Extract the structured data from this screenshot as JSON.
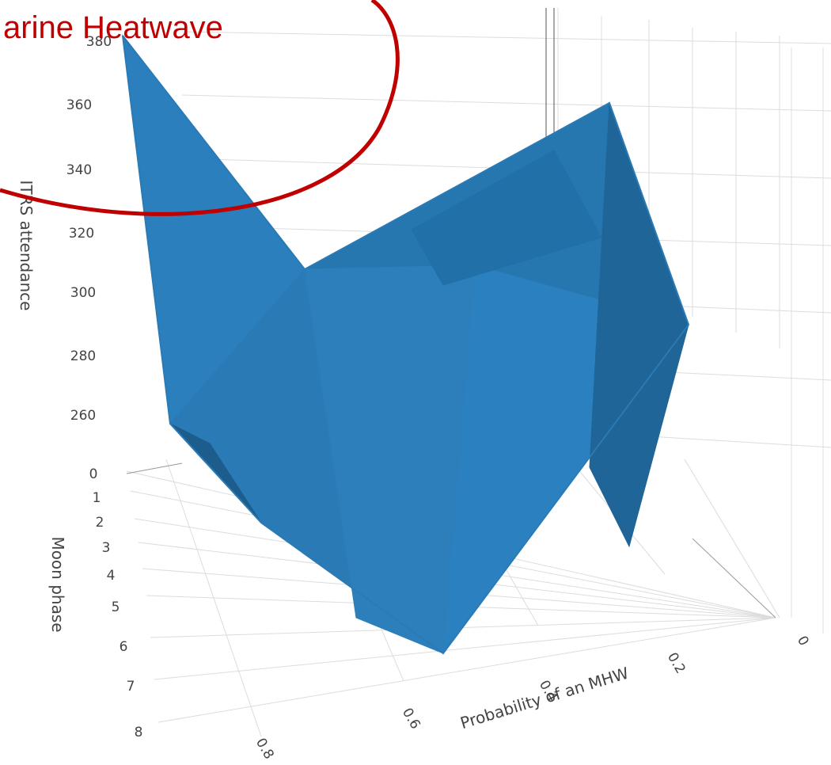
{
  "chart_data": {
    "type": "surface",
    "axes": {
      "z": {
        "label": "ITRS attendance",
        "ticks": [
          "260",
          "280",
          "300",
          "320",
          "340",
          "360",
          "380"
        ],
        "range": [
          250,
          380
        ]
      },
      "y": {
        "label": "Moon phase",
        "ticks": [
          "0",
          "1",
          "2",
          "3",
          "4",
          "5",
          "6",
          "7",
          "8"
        ],
        "range": [
          0,
          8
        ]
      },
      "x": {
        "label": "Probability of an MHW",
        "ticks": [
          "0",
          "0.2",
          "0.4",
          "0.6",
          "0.8"
        ],
        "range": [
          0,
          0.9
        ]
      }
    },
    "grid": true,
    "surface_color": "#2a7ab5",
    "annotation": {
      "text": "Marine Heatwave",
      "visible_text": "arine Heatwave",
      "color": "#c00000"
    }
  }
}
